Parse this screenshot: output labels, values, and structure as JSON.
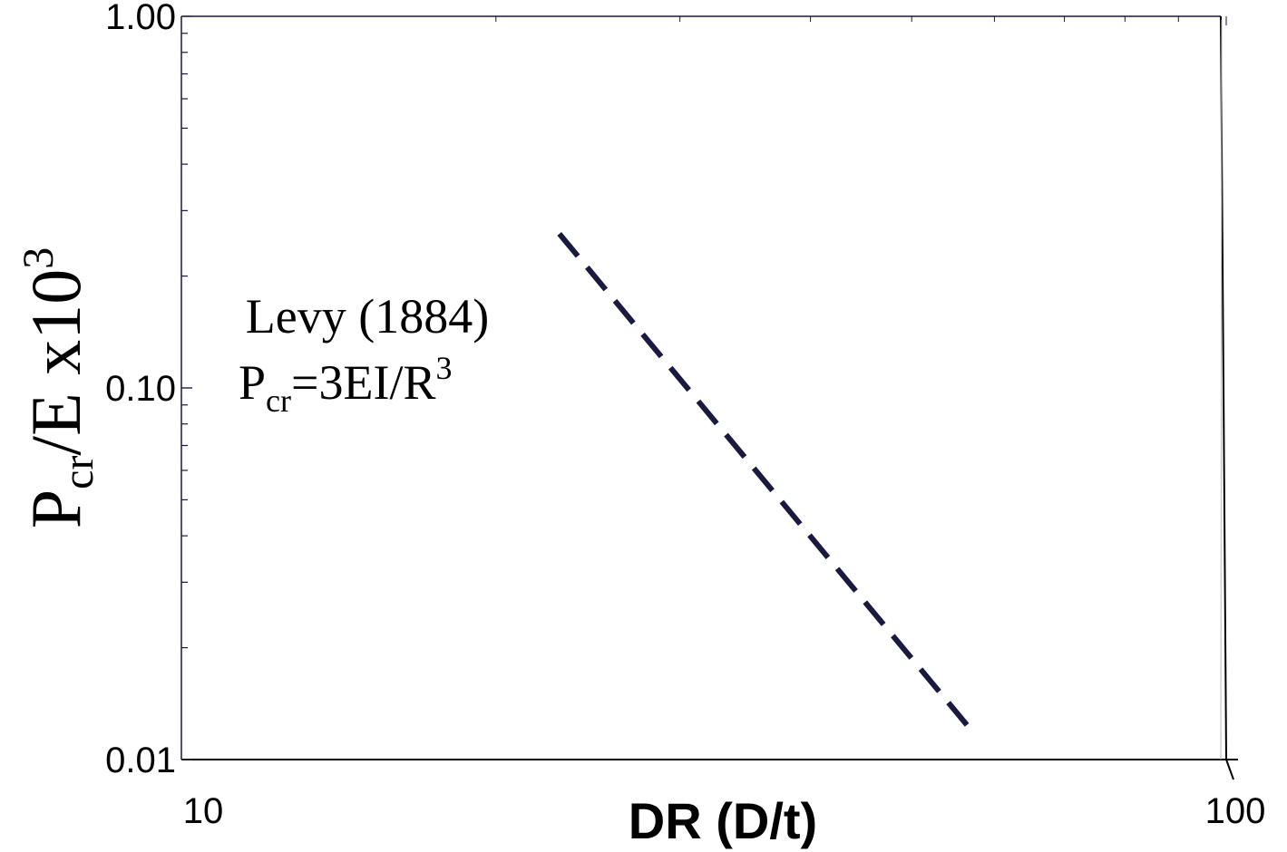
{
  "chart_data": {
    "type": "line",
    "x_scale": "log",
    "y_scale": "log",
    "xlim": [
      10,
      100
    ],
    "ylim": [
      0.01,
      1.0
    ],
    "x_ticks": [
      "10",
      "100"
    ],
    "y_ticks": [
      "0.01",
      "0.10",
      "1.00"
    ],
    "xlabel": "DR (D/t)",
    "ylabel": {
      "main": "P",
      "sub": "cr",
      "rest": "/E x10",
      "sup": "3"
    },
    "grid": false,
    "legend": "none",
    "series": [
      {
        "style": "dashed",
        "color": "#1a1a40",
        "x": [
          23,
          57
        ],
        "y": [
          0.26,
          0.012
        ]
      }
    ],
    "annotation": {
      "line1": "Levy (1884)",
      "line2_main": "P",
      "line2_sub": "cr",
      "line2_rest": "=3EI/R",
      "line2_sup": "3"
    }
  }
}
